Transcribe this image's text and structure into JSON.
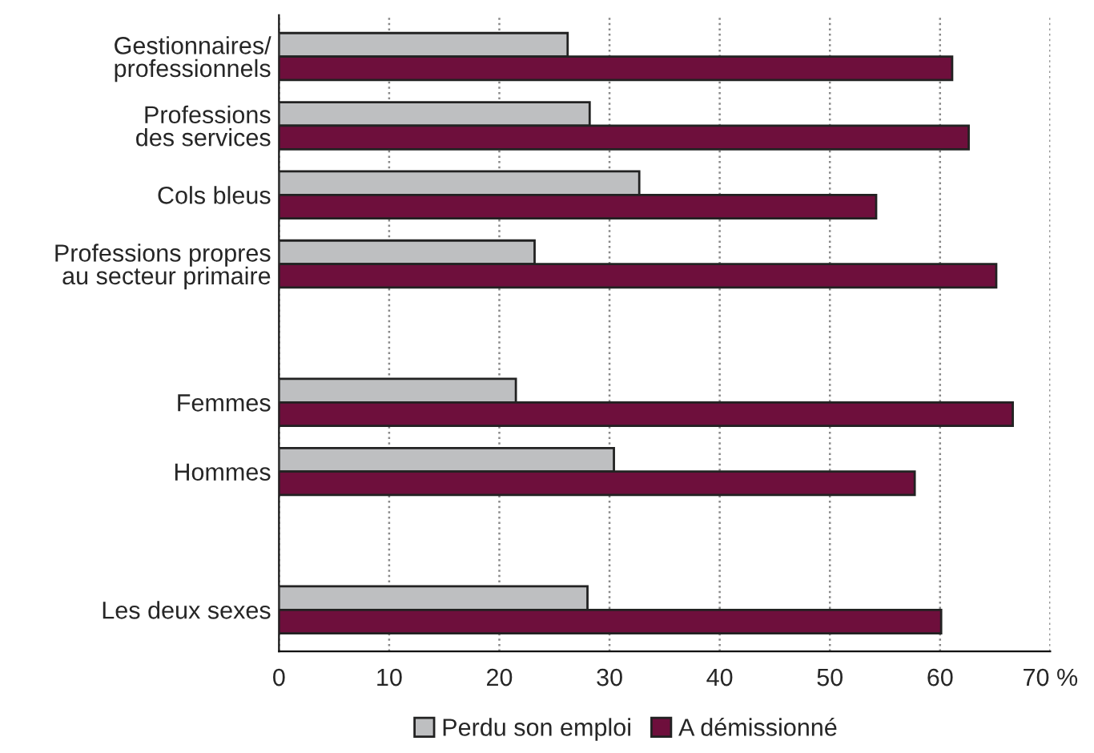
{
  "chart_data": {
    "type": "bar",
    "orientation": "horizontal",
    "categories": [
      "Gestionnaires/\nprofessionnels",
      "Professions\ndes services",
      "Cols bleus",
      "Professions propres\nau secteur primaire",
      null,
      "Femmes",
      "Hommes",
      null,
      "Les deux sexes"
    ],
    "series": [
      {
        "name": "Perdu son emploi",
        "color": "#bebfc1",
        "values": [
          26.2,
          28.2,
          32.7,
          23.2,
          null,
          21.5,
          30.4,
          null,
          28.0
        ]
      },
      {
        "name": "A démissionné",
        "color": "#6e0f3c",
        "values": [
          61.1,
          62.6,
          54.2,
          65.1,
          null,
          66.6,
          57.7,
          null,
          60.1
        ]
      }
    ],
    "xlim": [
      0,
      70
    ],
    "xticks": [
      0,
      10,
      20,
      30,
      40,
      50,
      60,
      {
        "value": 70,
        "label": "70 %"
      }
    ],
    "grid": "x",
    "legend": "bottom"
  }
}
